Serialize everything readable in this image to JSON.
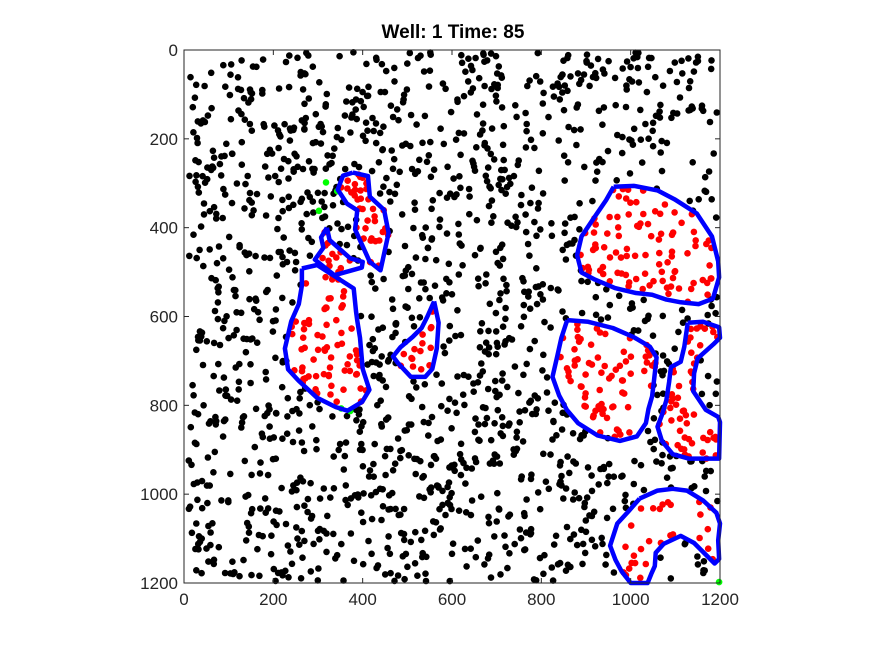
{
  "chart_data": {
    "type": "scatter",
    "title": "Well: 1 Time: 85",
    "xlabel": "",
    "ylabel": "",
    "xlim": [
      0,
      1200
    ],
    "ylim": [
      0,
      1200
    ],
    "y_reversed": true,
    "grid": false,
    "xticks": [
      0,
      200,
      400,
      600,
      800,
      1000,
      1200
    ],
    "yticks": [
      0,
      200,
      400,
      600,
      800,
      1000,
      1200
    ],
    "colors": {
      "background_points": "#000000",
      "cluster_points": "#ff0000",
      "highlight_points": "#00ff00",
      "outlines": "#0000ff",
      "axes": "#262626"
    },
    "background_points": {
      "count": 1800,
      "seed": 85
    },
    "highlight_points": [
      [
        318,
        298
      ],
      [
        343,
        318
      ],
      [
        302,
        362
      ],
      [
        352,
        807
      ],
      [
        372,
        813
      ],
      [
        1198,
        1198
      ]
    ],
    "clusters": [
      {
        "points": 40,
        "outline": [
          [
            378,
            276
          ],
          [
            412,
            284
          ],
          [
            416,
            330
          ],
          [
            448,
            360
          ],
          [
            458,
            412
          ],
          [
            440,
            496
          ],
          [
            416,
            477
          ],
          [
            383,
            404
          ],
          [
            388,
            361
          ],
          [
            365,
            346
          ],
          [
            344,
            314
          ],
          [
            356,
            283
          ],
          [
            378,
            276
          ]
        ]
      },
      {
        "points": 12,
        "outline": [
          [
            320,
            400
          ],
          [
            326,
            428
          ],
          [
            372,
            469
          ],
          [
            400,
            477
          ],
          [
            398,
            490
          ],
          [
            337,
            507
          ],
          [
            293,
            472
          ],
          [
            312,
            445
          ],
          [
            307,
            422
          ],
          [
            320,
            400
          ]
        ]
      },
      {
        "points": 70,
        "outline": [
          [
            264,
            492
          ],
          [
            298,
            484
          ],
          [
            380,
            537
          ],
          [
            385,
            588
          ],
          [
            388,
            610
          ],
          [
            394,
            648
          ],
          [
            400,
            718
          ],
          [
            415,
            765
          ],
          [
            399,
            792
          ],
          [
            366,
            812
          ],
          [
            340,
            804
          ],
          [
            298,
            783
          ],
          [
            257,
            745
          ],
          [
            233,
            719
          ],
          [
            226,
            672
          ],
          [
            240,
            611
          ],
          [
            257,
            572
          ],
          [
            264,
            530
          ],
          [
            264,
            492
          ]
        ]
      },
      {
        "points": 15,
        "outline": [
          [
            560,
            566
          ],
          [
            570,
            614
          ],
          [
            566,
            672
          ],
          [
            556,
            718
          ],
          [
            540,
            736
          ],
          [
            508,
            736
          ],
          [
            480,
            706
          ],
          [
            468,
            690
          ],
          [
            485,
            669
          ],
          [
            512,
            646
          ],
          [
            532,
            626
          ],
          [
            545,
            600
          ],
          [
            560,
            566
          ]
        ]
      },
      {
        "points": 95,
        "outline": [
          [
            962,
            308
          ],
          [
            1008,
            306
          ],
          [
            1060,
            316
          ],
          [
            1098,
            336
          ],
          [
            1148,
            368
          ],
          [
            1182,
            420
          ],
          [
            1196,
            476
          ],
          [
            1198,
            512
          ],
          [
            1184,
            560
          ],
          [
            1152,
            572
          ],
          [
            1112,
            568
          ],
          [
            1080,
            562
          ],
          [
            1048,
            551
          ],
          [
            1012,
            547
          ],
          [
            965,
            536
          ],
          [
            920,
            517
          ],
          [
            890,
            501
          ],
          [
            880,
            462
          ],
          [
            890,
            420
          ],
          [
            915,
            382
          ],
          [
            945,
            338
          ],
          [
            962,
            308
          ]
        ]
      },
      {
        "points": 75,
        "outline": [
          [
            858,
            608
          ],
          [
            905,
            612
          ],
          [
            960,
            626
          ],
          [
            1006,
            646
          ],
          [
            1043,
            668
          ],
          [
            1058,
            692
          ],
          [
            1052,
            746
          ],
          [
            1048,
            780
          ],
          [
            1040,
            808
          ],
          [
            1034,
            840
          ],
          [
            1014,
            870
          ],
          [
            976,
            880
          ],
          [
            926,
            868
          ],
          [
            882,
            840
          ],
          [
            857,
            810
          ],
          [
            840,
            778
          ],
          [
            825,
            736
          ],
          [
            836,
            688
          ],
          [
            845,
            648
          ],
          [
            858,
            608
          ]
        ]
      },
      {
        "points": 55,
        "outline": [
          [
            1128,
            614
          ],
          [
            1162,
            612
          ],
          [
            1198,
            624
          ],
          [
            1200,
            648
          ],
          [
            1186,
            662
          ],
          [
            1150,
            694
          ],
          [
            1142,
            728
          ],
          [
            1140,
            768
          ],
          [
            1168,
            810
          ],
          [
            1196,
            826
          ],
          [
            1200,
            838
          ],
          [
            1198,
            920
          ],
          [
            1130,
            920
          ],
          [
            1094,
            910
          ],
          [
            1070,
            880
          ],
          [
            1060,
            848
          ],
          [
            1070,
            822
          ],
          [
            1080,
            788
          ],
          [
            1086,
            748
          ],
          [
            1090,
            714
          ],
          [
            1112,
            702
          ],
          [
            1120,
            668
          ],
          [
            1128,
            614
          ]
        ]
      },
      {
        "points": 28,
        "outline": [
          [
            1020,
            1010
          ],
          [
            1060,
            992
          ],
          [
            1094,
            988
          ],
          [
            1126,
            992
          ],
          [
            1162,
            1014
          ],
          [
            1192,
            1042
          ],
          [
            1200,
            1066
          ],
          [
            1196,
            1104
          ],
          [
            1198,
            1146
          ],
          [
            1188,
            1156
          ],
          [
            1142,
            1110
          ],
          [
            1112,
            1094
          ],
          [
            1074,
            1112
          ],
          [
            1056,
            1132
          ],
          [
            1054,
            1162
          ],
          [
            1046,
            1180
          ],
          [
            1038,
            1200
          ],
          [
            1000,
            1200
          ],
          [
            980,
            1174
          ],
          [
            966,
            1148
          ],
          [
            954,
            1116
          ],
          [
            970,
            1066
          ],
          [
            994,
            1040
          ],
          [
            1020,
            1010
          ]
        ]
      }
    ]
  }
}
